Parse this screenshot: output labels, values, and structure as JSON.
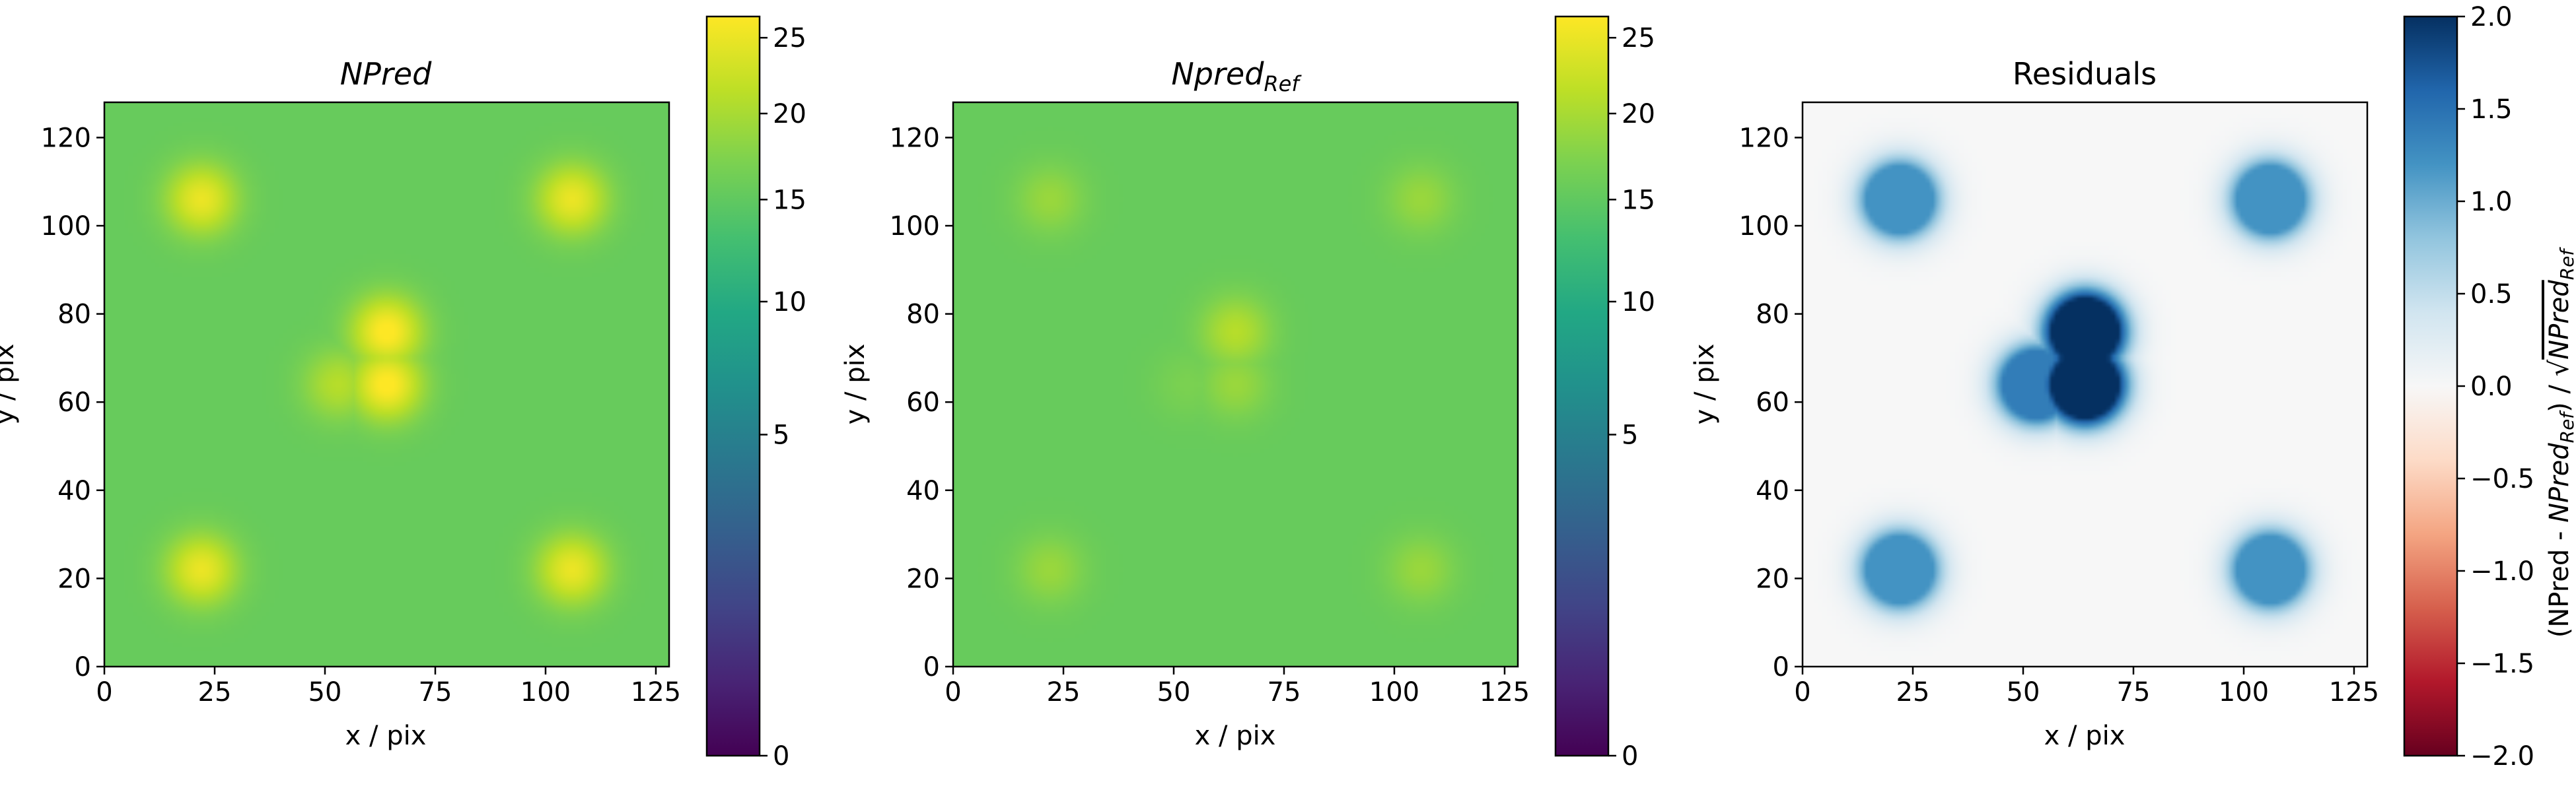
{
  "chart_data": [
    {
      "type": "heatmap",
      "title": "NPred",
      "xlabel": "x / pix",
      "ylabel": "y / pix",
      "xlim": [
        0,
        128
      ],
      "ylim": [
        0,
        128
      ],
      "xticks": [
        "0",
        "25",
        "50",
        "75",
        "100",
        "125"
      ],
      "yticks": [
        "0",
        "20",
        "40",
        "60",
        "80",
        "100",
        "120"
      ],
      "colorbar": {
        "scale": "sqrt",
        "range": [
          0,
          26.5
        ],
        "ticks": [
          "0",
          "5",
          "10",
          "15",
          "20",
          "25"
        ],
        "colormap": "viridis"
      },
      "background_level": 15.5,
      "features": [
        {
          "name": "source-lower-left",
          "x": 22,
          "y": 22,
          "peak": 25
        },
        {
          "name": "source-lower-right",
          "x": 106,
          "y": 22,
          "peak": 25
        },
        {
          "name": "source-upper-left",
          "x": 22,
          "y": 106,
          "peak": 25
        },
        {
          "name": "source-upper-right",
          "x": 106,
          "y": 106,
          "peak": 25
        },
        {
          "name": "source-center-low",
          "x": 64,
          "y": 64,
          "peak": 27
        },
        {
          "name": "source-center-high",
          "x": 64,
          "y": 76,
          "peak": 27
        },
        {
          "name": "source-center-side",
          "x": 53,
          "y": 64,
          "peak": 21
        }
      ]
    },
    {
      "type": "heatmap",
      "title": "Npred",
      "title_subscript": "Ref",
      "xlabel": "x / pix",
      "ylabel": "y / pix",
      "xlim": [
        0,
        128
      ],
      "ylim": [
        0,
        128
      ],
      "xticks": [
        "0",
        "25",
        "50",
        "75",
        "100",
        "125"
      ],
      "yticks": [
        "0",
        "20",
        "40",
        "60",
        "80",
        "100",
        "120"
      ],
      "colorbar": {
        "scale": "sqrt",
        "range": [
          0,
          26.5
        ],
        "ticks": [
          "0",
          "5",
          "10",
          "15",
          "20",
          "25"
        ],
        "colormap": "viridis"
      },
      "background_level": 15.5,
      "features": [
        {
          "name": "source-lower-left",
          "x": 22,
          "y": 22,
          "peak": 19
        },
        {
          "name": "source-lower-right",
          "x": 106,
          "y": 22,
          "peak": 19
        },
        {
          "name": "source-upper-left",
          "x": 22,
          "y": 106,
          "peak": 19
        },
        {
          "name": "source-upper-right",
          "x": 106,
          "y": 106,
          "peak": 19
        },
        {
          "name": "source-center-low",
          "x": 64,
          "y": 64,
          "peak": 19
        },
        {
          "name": "source-center-high",
          "x": 64,
          "y": 76,
          "peak": 21
        },
        {
          "name": "source-center-side",
          "x": 53,
          "y": 64,
          "peak": 17
        }
      ]
    },
    {
      "type": "heatmap",
      "title": "Residuals",
      "xlabel": "x / pix",
      "ylabel": "y / pix",
      "xlim": [
        0,
        128
      ],
      "ylim": [
        0,
        128
      ],
      "xticks": [
        "0",
        "25",
        "50",
        "75",
        "100",
        "125"
      ],
      "yticks": [
        "0",
        "20",
        "40",
        "60",
        "80",
        "100",
        "120"
      ],
      "colorbar": {
        "scale": "linear",
        "range": [
          -2,
          2
        ],
        "ticks": [
          "2.0",
          "1.5",
          "1.0",
          "0.5",
          "0.0",
          "−0.5",
          "−1.0",
          "−1.5",
          "−2.0"
        ],
        "colormap": "RdBu",
        "label_parts": [
          "(NPred - ",
          "NPred",
          "Ref",
          ") / ",
          "√",
          "NPred",
          "Ref"
        ]
      },
      "background_level": 0.0,
      "features": [
        {
          "name": "source-lower-left",
          "x": 22,
          "y": 22,
          "peak": 1.2
        },
        {
          "name": "source-lower-right",
          "x": 106,
          "y": 22,
          "peak": 1.2
        },
        {
          "name": "source-upper-left",
          "x": 22,
          "y": 106,
          "peak": 1.2
        },
        {
          "name": "source-upper-right",
          "x": 106,
          "y": 106,
          "peak": 1.2
        },
        {
          "name": "source-center-low",
          "x": 64,
          "y": 64,
          "peak": 2.0
        },
        {
          "name": "source-center-high",
          "x": 64,
          "y": 76,
          "peak": 2.0
        },
        {
          "name": "source-center-side",
          "x": 53,
          "y": 64,
          "peak": 1.4
        }
      ]
    }
  ]
}
